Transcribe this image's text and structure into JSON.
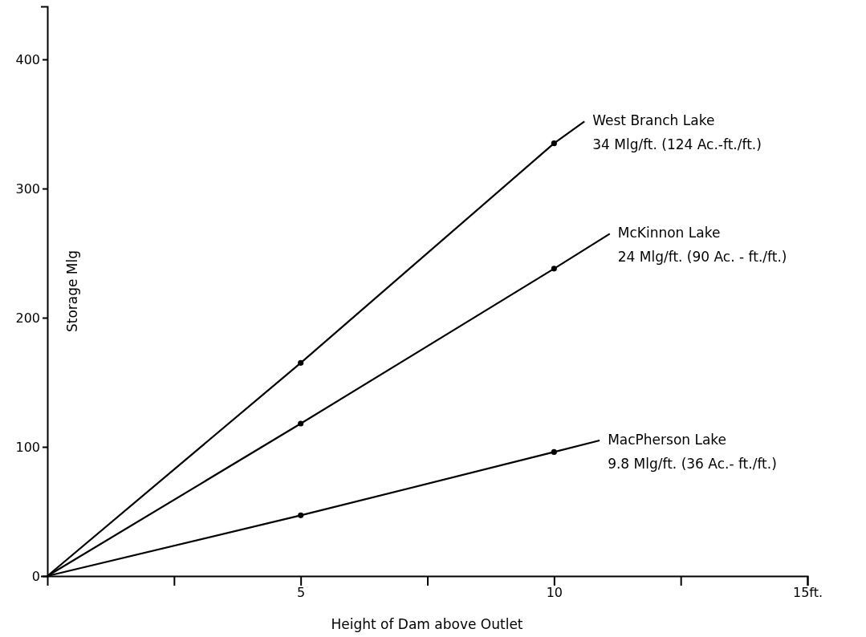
{
  "chart_data": {
    "type": "line",
    "xlabel": "Height of Dam above Outlet",
    "ylabel": "Storage Mlg",
    "xlim": [
      0,
      15
    ],
    "ylim": [
      0,
      441
    ],
    "xticks": [
      {
        "value": 2.5,
        "label": null
      },
      5,
      {
        "value": 7.5,
        "label": null
      },
      10,
      {
        "value": 12.5,
        "label": null
      },
      {
        "value": 15,
        "label": "15ft."
      }
    ],
    "yticks": [
      0,
      100,
      200,
      300,
      400
    ],
    "grid": false,
    "marker": "none",
    "line_style": "solid",
    "series": [
      {
        "name": "West Branch Lake",
        "color": "#000000",
        "x": [
          0,
          5,
          10,
          10.6
        ],
        "values": [
          0,
          165,
          335,
          352
        ]
      },
      {
        "name": "McKinnon Lake",
        "color": "#000000",
        "x": [
          0,
          5,
          10,
          11.1
        ],
        "values": [
          0,
          118,
          238,
          265
        ]
      },
      {
        "name": "MacPherson Lake",
        "color": "#000000",
        "x": [
          0,
          5,
          10,
          10.9
        ],
        "values": [
          0,
          47,
          96,
          105
        ]
      },
      {
        "type": "scatter",
        "marker": "circle",
        "color": "#000000",
        "x": [
          5,
          10,
          5,
          10,
          5,
          10
        ],
        "values": [
          165,
          335,
          118,
          238,
          47,
          96
        ]
      }
    ],
    "annotations": [
      "34 Mlg/ft. (124 Ac.-ft./ft.)",
      "24 Mlg/ft. (90 Ac. - ft./ft.)",
      "9.8 Mlg/ft. (36 Ac.- ft./ft.)"
    ]
  }
}
